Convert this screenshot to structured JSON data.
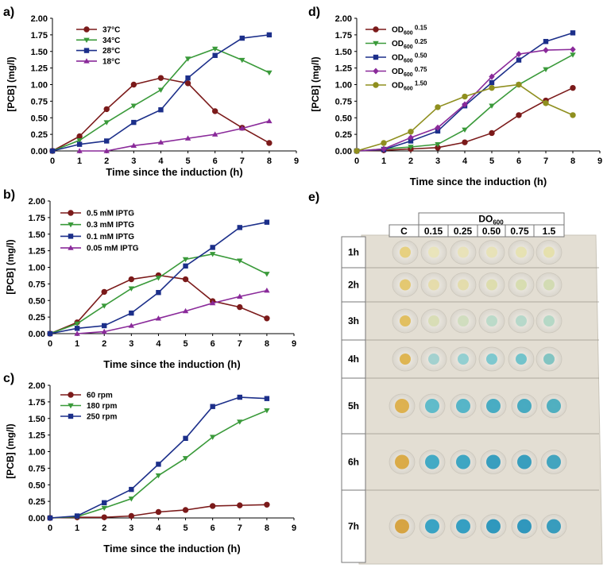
{
  "colors": {
    "dark_red": "#7b1a1a",
    "green": "#3a9a3a",
    "navy": "#1c2f8a",
    "purple": "#8a2a9a",
    "olive": "#8f8f1f"
  },
  "chart_data": [
    {
      "id": "a",
      "letter": "a)",
      "type": "line",
      "xlabel": "Time since the induction (h)",
      "ylabel": "[PCB] (mg/l)",
      "xlim": [
        0,
        9
      ],
      "ylim": [
        0,
        2
      ],
      "xticks": [
        "0",
        "1",
        "2",
        "3",
        "4",
        "5",
        "6",
        "7",
        "8",
        "9"
      ],
      "yticks": [
        "0.00",
        "0.25",
        "0.50",
        "0.75",
        "1.00",
        "1.25",
        "1.50",
        "1.75",
        "2.00"
      ],
      "x": [
        0,
        1,
        2,
        3,
        4,
        5,
        6,
        7,
        8
      ],
      "series": [
        {
          "name": "37°C",
          "color": "#7b1a1a",
          "marker": "circle",
          "values": [
            0,
            0.22,
            0.63,
            1.0,
            1.1,
            1.02,
            0.6,
            0.35,
            0.12
          ]
        },
        {
          "name": "34°C",
          "color": "#3a9a3a",
          "marker": "triangle-down",
          "values": [
            0,
            0.16,
            0.43,
            0.68,
            0.92,
            1.39,
            1.54,
            1.37,
            1.18
          ]
        },
        {
          "name": "28°C",
          "color": "#1c2f8a",
          "marker": "square",
          "values": [
            0,
            0.1,
            0.15,
            0.43,
            0.62,
            1.1,
            1.44,
            1.7,
            1.75
          ]
        },
        {
          "name": "18°C",
          "color": "#8a2a9a",
          "marker": "triangle-up",
          "values": [
            null,
            0,
            0,
            0.08,
            0.13,
            0.19,
            0.25,
            0.34,
            0.45
          ]
        }
      ]
    },
    {
      "id": "b",
      "letter": "b)",
      "type": "line",
      "xlabel": "Time since the induction (h)",
      "ylabel": "[PCB] (mg/l)",
      "xlim": [
        0,
        9
      ],
      "ylim": [
        0,
        2
      ],
      "xticks": [
        "0",
        "1",
        "2",
        "3",
        "4",
        "5",
        "6",
        "7",
        "8",
        "9"
      ],
      "yticks": [
        "0.00",
        "0.25",
        "0.50",
        "0.75",
        "1.00",
        "1.25",
        "1.50",
        "1.75",
        "2.00"
      ],
      "x": [
        0,
        1,
        2,
        3,
        4,
        5,
        6,
        7,
        8
      ],
      "series": [
        {
          "name": "0.5 mM IPTG",
          "color": "#7b1a1a",
          "marker": "circle",
          "values": [
            0,
            0.17,
            0.63,
            0.82,
            0.88,
            0.82,
            0.49,
            0.4,
            0.23
          ]
        },
        {
          "name": "0.3 mM IPTG",
          "color": "#3a9a3a",
          "marker": "triangle-down",
          "values": [
            0,
            0.15,
            0.42,
            0.68,
            0.84,
            1.12,
            1.2,
            1.1,
            0.9
          ]
        },
        {
          "name": "0.1 mM IPTG",
          "color": "#1c2f8a",
          "marker": "square",
          "values": [
            0,
            0.08,
            0.12,
            0.31,
            0.62,
            1.02,
            1.3,
            1.6,
            1.68
          ]
        },
        {
          "name": "0.05 mM IPTG",
          "color": "#8a2a9a",
          "marker": "triangle-up",
          "values": [
            null,
            0,
            0.03,
            0.12,
            0.23,
            0.34,
            0.46,
            0.56,
            0.65
          ]
        }
      ]
    },
    {
      "id": "c",
      "letter": "c)",
      "type": "line",
      "xlabel": "Time since the induction (h)",
      "ylabel": "[PCB] (mg/l)",
      "xlim": [
        0,
        9
      ],
      "ylim": [
        0,
        2
      ],
      "xticks": [
        "0",
        "1",
        "2",
        "3",
        "4",
        "5",
        "6",
        "7",
        "8",
        "9"
      ],
      "yticks": [
        "0.00",
        "0.25",
        "0.50",
        "0.75",
        "1.00",
        "1.25",
        "1.50",
        "1.75",
        "2.00"
      ],
      "x": [
        0,
        1,
        2,
        3,
        4,
        5,
        6,
        7,
        8
      ],
      "series": [
        {
          "name": "60 rpm",
          "color": "#7b1a1a",
          "marker": "circle",
          "values": [
            0,
            0.01,
            0.01,
            0.03,
            0.09,
            0.12,
            0.18,
            0.19,
            0.2
          ]
        },
        {
          "name": "180 rpm",
          "color": "#3a9a3a",
          "marker": "triangle-down",
          "values": [
            0,
            0.02,
            0.15,
            0.29,
            0.64,
            0.9,
            1.22,
            1.45,
            1.62
          ]
        },
        {
          "name": "250 rpm",
          "color": "#1c2f8a",
          "marker": "square",
          "values": [
            0,
            0.03,
            0.23,
            0.43,
            0.81,
            1.2,
            1.68,
            1.82,
            1.8
          ]
        }
      ]
    },
    {
      "id": "d",
      "letter": "d)",
      "type": "line",
      "xlabel": "Time since the induction (h)",
      "ylabel": "[PCB] (mg/l)",
      "xlim": [
        0,
        9
      ],
      "ylim": [
        0,
        2
      ],
      "xticks": [
        "0",
        "1",
        "2",
        "3",
        "4",
        "5",
        "6",
        "7",
        "8",
        "9"
      ],
      "yticks": [
        "0.00",
        "0.25",
        "0.50",
        "0.75",
        "1.00",
        "1.25",
        "1.50",
        "1.75",
        "2.00"
      ],
      "x": [
        0,
        1,
        2,
        3,
        4,
        5,
        6,
        7,
        8
      ],
      "series": [
        {
          "name": "OD",
          "sub": "600",
          "suffix": " 0.15",
          "color": "#7b1a1a",
          "marker": "circle",
          "values": [
            0,
            0.01,
            0.03,
            0.05,
            0.13,
            0.27,
            0.54,
            0.76,
            0.95
          ]
        },
        {
          "name": "OD",
          "sub": "600",
          "suffix": " 0.25",
          "color": "#3a9a3a",
          "marker": "triangle-down",
          "values": [
            0,
            0.03,
            0.06,
            0.1,
            0.32,
            0.68,
            1.0,
            1.23,
            1.45
          ]
        },
        {
          "name": "OD",
          "sub": "600",
          "suffix": " 0.50",
          "color": "#1c2f8a",
          "marker": "square",
          "values": [
            0,
            0.02,
            0.15,
            0.3,
            0.68,
            1.03,
            1.37,
            1.65,
            1.78
          ]
        },
        {
          "name": "OD",
          "sub": "600",
          "suffix": " 0.75",
          "color": "#8a2a9a",
          "marker": "diamond",
          "values": [
            0,
            0.03,
            0.2,
            0.35,
            0.7,
            1.12,
            1.46,
            1.52,
            1.53
          ]
        },
        {
          "name": "OD",
          "sub": "600",
          "suffix": " 1.50",
          "color": "#8f8f1f",
          "marker": "circle",
          "values": [
            0,
            0.12,
            0.29,
            0.66,
            0.82,
            0.95,
            1.0,
            0.72,
            0.54
          ]
        }
      ]
    }
  ],
  "panel_e": {
    "letter": "e)",
    "header_group": "DO",
    "header_group_sub": "600",
    "columns": [
      "C",
      "0.15",
      "0.25",
      "0.50",
      "0.75",
      "1.5"
    ],
    "rows": [
      "1h",
      "2h",
      "3h",
      "4h",
      "5h",
      "6h",
      "7h"
    ]
  }
}
